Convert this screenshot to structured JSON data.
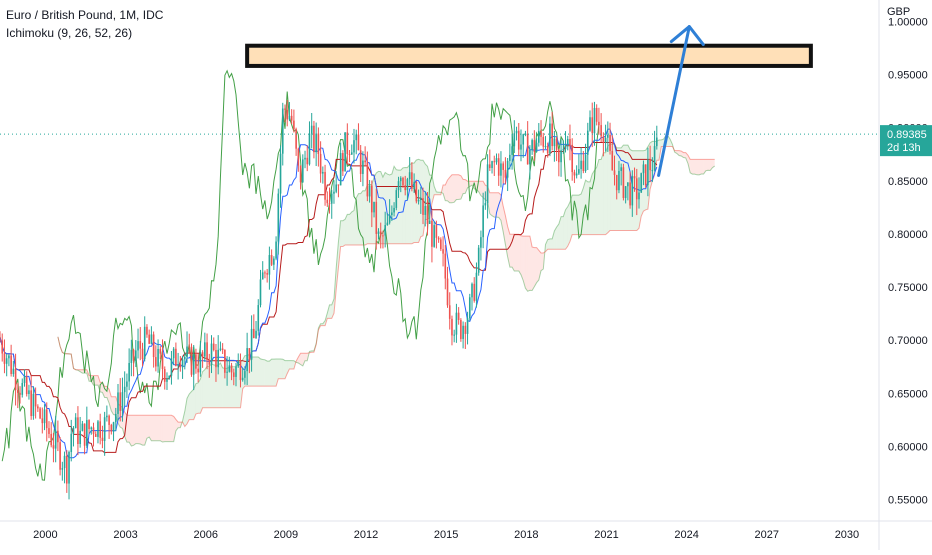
{
  "chart_data": {
    "type": "candlestick",
    "title": "Euro / British Pound, 1M, IDC",
    "indicator_label": "Ichimoku (9, 26, 52, 26)",
    "currency": "GBP",
    "ylim": [
      0.53,
      1.02
    ],
    "xlim": [
      1998.3,
      2031.2
    ],
    "y_ticks": [
      "1.00000",
      "0.95000",
      "0.90000",
      "0.85000",
      "0.80000",
      "0.75000",
      "0.70000",
      "0.65000",
      "0.60000",
      "0.55000"
    ],
    "x_ticks": [
      "2000",
      "2003",
      "2006",
      "2009",
      "2012",
      "2015",
      "2018",
      "2021",
      "2024",
      "2027",
      "2030"
    ],
    "last_price": "0.89385",
    "countdown": "2d 13h",
    "close_series": [
      [
        1998.3,
        0.7
      ],
      [
        1999.0,
        0.66
      ],
      [
        1999.5,
        0.64
      ],
      [
        2000.0,
        0.62
      ],
      [
        2000.4,
        0.6
      ],
      [
        2000.8,
        0.58
      ],
      [
        2001.0,
        0.62
      ],
      [
        2001.3,
        0.61
      ],
      [
        2001.8,
        0.62
      ],
      [
        2002.2,
        0.62
      ],
      [
        2002.6,
        0.63
      ],
      [
        2003.0,
        0.66
      ],
      [
        2003.4,
        0.69
      ],
      [
        2003.8,
        0.7
      ],
      [
        2004.2,
        0.68
      ],
      [
        2004.6,
        0.67
      ],
      [
        2005.0,
        0.69
      ],
      [
        2005.4,
        0.68
      ],
      [
        2005.8,
        0.68
      ],
      [
        2006.2,
        0.69
      ],
      [
        2006.6,
        0.68
      ],
      [
        2007.0,
        0.67
      ],
      [
        2007.4,
        0.68
      ],
      [
        2007.8,
        0.7
      ],
      [
        2008.2,
        0.77
      ],
      [
        2008.6,
        0.79
      ],
      [
        2008.9,
        0.92
      ],
      [
        2009.2,
        0.91
      ],
      [
        2009.5,
        0.85
      ],
      [
        2009.9,
        0.89
      ],
      [
        2010.2,
        0.88
      ],
      [
        2010.5,
        0.84
      ],
      [
        2010.9,
        0.85
      ],
      [
        2011.2,
        0.88
      ],
      [
        2011.5,
        0.89
      ],
      [
        2011.9,
        0.86
      ],
      [
        2012.2,
        0.83
      ],
      [
        2012.5,
        0.79
      ],
      [
        2012.9,
        0.81
      ],
      [
        2013.2,
        0.86
      ],
      [
        2013.6,
        0.85
      ],
      [
        2013.9,
        0.83
      ],
      [
        2014.2,
        0.82
      ],
      [
        2014.6,
        0.79
      ],
      [
        2014.9,
        0.77
      ],
      [
        2015.2,
        0.72
      ],
      [
        2015.5,
        0.71
      ],
      [
        2015.9,
        0.73
      ],
      [
        2016.2,
        0.77
      ],
      [
        2016.5,
        0.85
      ],
      [
        2016.9,
        0.87
      ],
      [
        2017.2,
        0.85
      ],
      [
        2017.5,
        0.9
      ],
      [
        2017.9,
        0.88
      ],
      [
        2018.2,
        0.88
      ],
      [
        2018.5,
        0.89
      ],
      [
        2018.9,
        0.89
      ],
      [
        2019.2,
        0.86
      ],
      [
        2019.5,
        0.9
      ],
      [
        2019.9,
        0.85
      ],
      [
        2020.2,
        0.88
      ],
      [
        2020.5,
        0.91
      ],
      [
        2020.9,
        0.9
      ],
      [
        2021.2,
        0.86
      ],
      [
        2021.5,
        0.85
      ],
      [
        2021.9,
        0.84
      ],
      [
        2022.2,
        0.84
      ],
      [
        2022.5,
        0.86
      ],
      [
        2022.8,
        0.87
      ],
      [
        2022.95,
        0.894
      ]
    ],
    "resistance_zone": {
      "from": 0.958,
      "to": 0.977,
      "x_from": 2007.55,
      "x_to": 2028.65
    },
    "projection_arrow": {
      "from": [
        2022.95,
        0.855
      ],
      "to": [
        2024.1,
        0.995
      ]
    },
    "grid": false
  }
}
